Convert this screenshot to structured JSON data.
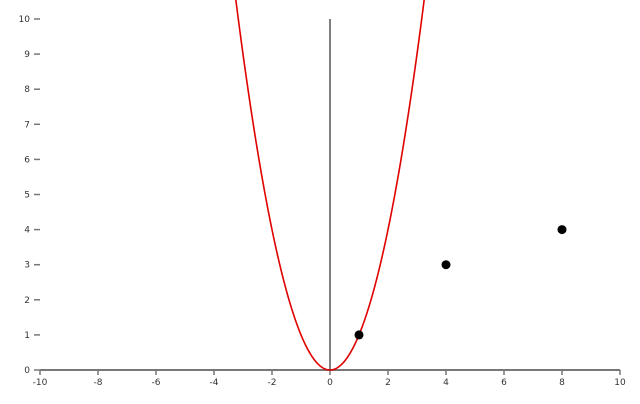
{
  "chart_data": {
    "type": "line",
    "title": "",
    "xlabel": "",
    "ylabel": "",
    "xlim": [
      -10,
      10
    ],
    "ylim": [
      0,
      10
    ],
    "grid": false,
    "x_ticks": [
      "-10",
      "-8",
      "-6",
      "-4",
      "-2",
      "0",
      "2",
      "4",
      "6",
      "8",
      "10"
    ],
    "y_ticks": [
      "0",
      "1",
      "2",
      "3",
      "4",
      "5",
      "6",
      "7",
      "8",
      "9",
      "10"
    ],
    "series": [
      {
        "type": "line",
        "function": "y = x^2",
        "color": "#e00000"
      },
      {
        "type": "scatter",
        "color": "#000000",
        "points": [
          [
            1,
            1
          ],
          [
            4,
            3
          ],
          [
            8,
            4
          ]
        ]
      }
    ],
    "vertical_line": {
      "x": 0,
      "color": "#555555"
    }
  }
}
